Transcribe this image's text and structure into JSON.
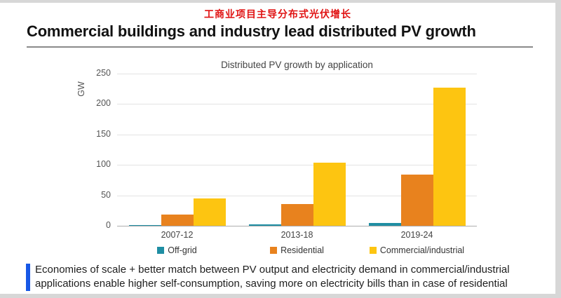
{
  "page": {
    "chinese_title": "工商业项目主导分布式光伏增长",
    "heading": "Commercial buildings and industry lead distributed PV growth",
    "note": {
      "line1": "Economies of scale + better match between PV output and electricity demand in commercial/industrial",
      "line2": "applications enable higher self-consumption, saving more on electricity bills than in case of residential"
    }
  },
  "colors": {
    "chinese_title": "#e01212",
    "note_accent": "#1758e6",
    "gridline": "#e3e3e3",
    "baseline": "#adadad"
  },
  "chart_data": {
    "type": "bar",
    "title": "Distributed PV growth by application",
    "xlabel": "",
    "ylabel": "GW",
    "categories": [
      "2007-12",
      "2013-18",
      "2019-24"
    ],
    "series": [
      {
        "name": "Off-grid",
        "color": "#1f8ea3",
        "values": [
          1,
          2,
          5
        ]
      },
      {
        "name": "Residential",
        "color": "#e8821e",
        "values": [
          19,
          36,
          84
        ]
      },
      {
        "name": "Commercial/industrial",
        "color": "#fdc511",
        "values": [
          45,
          104,
          227
        ]
      }
    ],
    "ylim": [
      0,
      250
    ],
    "yticks": [
      0,
      50,
      100,
      150,
      200,
      250
    ],
    "grid": true,
    "legend_position": "bottom"
  }
}
